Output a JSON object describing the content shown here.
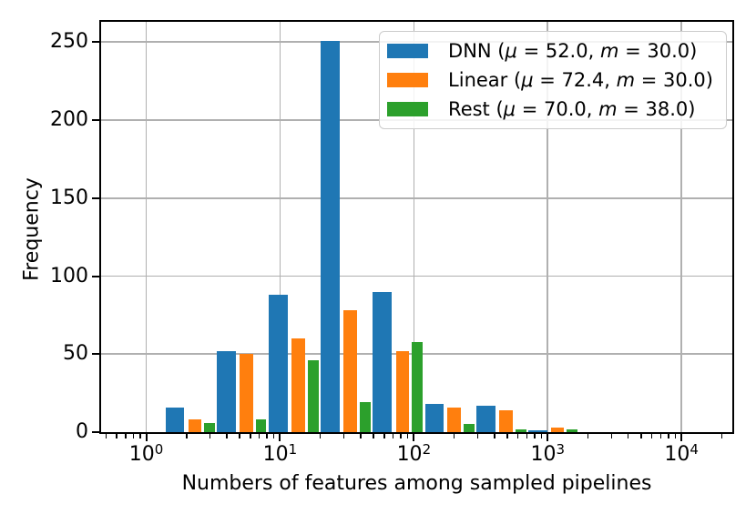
{
  "chart_data": {
    "type": "bar",
    "subtype": "histogram-grouped",
    "title": "",
    "xlabel": "Numbers of features among sampled pipelines",
    "ylabel": "Frequency",
    "xscale": "log",
    "xlim": [
      0.46,
      24000
    ],
    "ylim": [
      0,
      263
    ],
    "grid": "major",
    "legend_position": "upper right",
    "y_ticks": [
      0,
      50,
      100,
      150,
      200,
      250
    ],
    "x_major_ticks": [
      {
        "value": 1,
        "base": "10",
        "exp": "0"
      },
      {
        "value": 10,
        "base": "10",
        "exp": "1"
      },
      {
        "value": 100,
        "base": "10",
        "exp": "2"
      },
      {
        "value": 1000,
        "base": "10",
        "exp": "3"
      },
      {
        "value": 10000,
        "base": "10",
        "exp": "4"
      }
    ],
    "bin_edges": [
      1.39,
      3.39,
      8.2,
      20.2,
      49.4,
      121,
      295,
      720,
      1730
    ],
    "bar_rwidth": 0.8,
    "series": [
      {
        "name": "DNN",
        "color": "#1f77b4",
        "values": [
          16,
          52,
          88,
          251,
          90,
          18,
          17,
          1
        ]
      },
      {
        "name": "Linear",
        "color": "#ff7f0e",
        "values": [
          8,
          50,
          60,
          78,
          52,
          16,
          14,
          3
        ]
      },
      {
        "name": "Rest",
        "color": "#2ca02c",
        "values": [
          6,
          8,
          46,
          19,
          58,
          5,
          2,
          2
        ]
      }
    ]
  },
  "legend": {
    "items": [
      {
        "series": "DNN",
        "swatch_color": "#1f77b4",
        "parts": [
          {
            "t": "DNN (",
            "i": false
          },
          {
            "t": "μ",
            "i": true
          },
          {
            "t": " = 52.0, ",
            "i": false
          },
          {
            "t": "m",
            "i": true
          },
          {
            "t": " = 30.0)",
            "i": false
          }
        ]
      },
      {
        "series": "Linear",
        "swatch_color": "#ff7f0e",
        "parts": [
          {
            "t": "Linear (",
            "i": false
          },
          {
            "t": "μ",
            "i": true
          },
          {
            "t": " = 72.4, ",
            "i": false
          },
          {
            "t": "m",
            "i": true
          },
          {
            "t": " = 30.0)",
            "i": false
          }
        ]
      },
      {
        "series": "Rest",
        "swatch_color": "#2ca02c",
        "parts": [
          {
            "t": "Rest (",
            "i": false
          },
          {
            "t": "μ",
            "i": true
          },
          {
            "t": " = 70.0, ",
            "i": false
          },
          {
            "t": "m",
            "i": true
          },
          {
            "t": " = 38.0)",
            "i": false
          }
        ]
      }
    ]
  },
  "colors": {
    "background": "#ffffff",
    "grid": "#b0b0b0",
    "spine": "#000000",
    "tick": "#000000",
    "legend_border": "#cccccc"
  }
}
